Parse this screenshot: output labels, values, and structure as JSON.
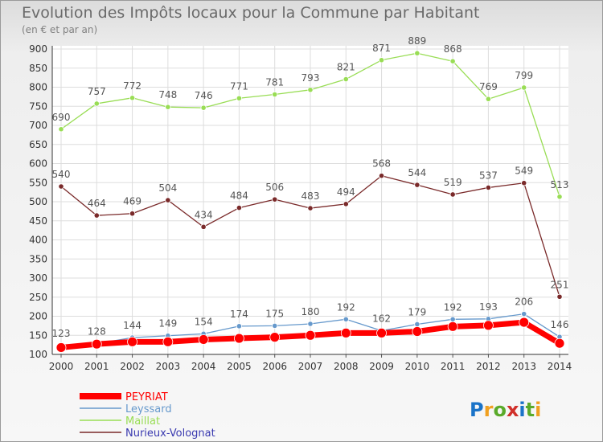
{
  "title": "Evolution des Impôts locaux pour la Commune par Habitant",
  "subtitle": "(en € et par an)",
  "logo": "Proxiti",
  "chart_data": {
    "type": "line",
    "x": [
      "2000",
      "2001",
      "2002",
      "2003",
      "2004",
      "2005",
      "2006",
      "2007",
      "2008",
      "2009",
      "2010",
      "2011",
      "2012",
      "2013",
      "2014"
    ],
    "ylim": [
      100,
      900
    ],
    "yticks": [
      100,
      150,
      200,
      250,
      300,
      350,
      400,
      450,
      500,
      550,
      600,
      650,
      700,
      750,
      800,
      850,
      900
    ],
    "grid": true,
    "legend_position": "bottom-left",
    "series": [
      {
        "name": "PEYRIAT",
        "color": "#ff0000",
        "values": [
          118,
          127,
          133,
          133,
          139,
          142,
          145,
          150,
          156,
          156,
          160,
          173,
          176,
          184,
          129
        ],
        "labels_shown": false
      },
      {
        "name": "Leyssard",
        "color": "#6699cc",
        "values": [
          123,
          128,
          144,
          149,
          154,
          174,
          175,
          180,
          192,
          162,
          179,
          192,
          193,
          206,
          146
        ],
        "labels_shown": true
      },
      {
        "name": "Maillat",
        "color": "#99dd55",
        "values": [
          690,
          757,
          772,
          748,
          746,
          771,
          781,
          793,
          821,
          871,
          889,
          868,
          769,
          799,
          513
        ],
        "labels_shown": true
      },
      {
        "name": "Nurieux-Volognat",
        "color": "#7a2a2a",
        "values": [
          540,
          464,
          469,
          504,
          434,
          484,
          506,
          483,
          494,
          568,
          544,
          519,
          537,
          549,
          251
        ],
        "labels_shown": true
      }
    ]
  }
}
